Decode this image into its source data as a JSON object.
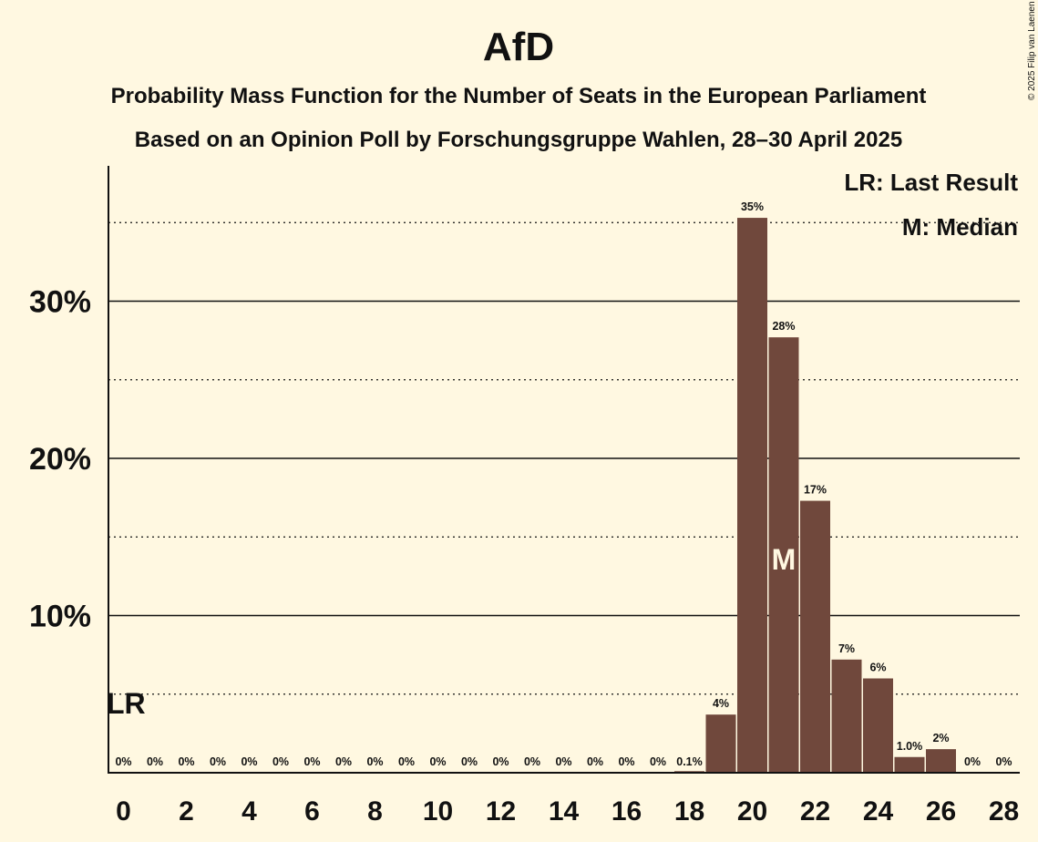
{
  "chart_data": {
    "type": "bar",
    "title": "AfD",
    "subtitle1": "Probability Mass Function for the Number of Seats in the European Parliament",
    "subtitle2": "Based on an Opinion Poll by Forschungsgruppe Wahlen, 28–30 April 2025",
    "copyright": "© 2025 Filip van Laenen",
    "x": [
      0,
      1,
      2,
      3,
      4,
      5,
      6,
      7,
      8,
      9,
      10,
      11,
      12,
      13,
      14,
      15,
      16,
      17,
      18,
      19,
      20,
      21,
      22,
      23,
      24,
      25,
      26,
      27,
      28
    ],
    "values": [
      0,
      0,
      0,
      0,
      0,
      0,
      0,
      0,
      0,
      0,
      0,
      0,
      0,
      0,
      0,
      0,
      0,
      0,
      0.1,
      3.7,
      35.3,
      27.7,
      17.3,
      7.2,
      6.0,
      1.0,
      1.5,
      0,
      0
    ],
    "value_labels": [
      "0%",
      "0%",
      "0%",
      "0%",
      "0%",
      "0%",
      "0%",
      "0%",
      "0%",
      "0%",
      "0%",
      "0%",
      "0%",
      "0%",
      "0%",
      "0%",
      "0%",
      "0%",
      "0.1%",
      "4%",
      "35%",
      "28%",
      "17%",
      "7%",
      "6%",
      "1.0%",
      "2%",
      "0%",
      "0%"
    ],
    "x_tick_labels": [
      "0",
      "2",
      "4",
      "6",
      "8",
      "10",
      "12",
      "14",
      "16",
      "18",
      "20",
      "22",
      "24",
      "26",
      "28"
    ],
    "y_tick_labels": [
      "10%",
      "20%",
      "30%"
    ],
    "ylim": [
      0,
      38.6
    ],
    "grid": true,
    "bar_color": "#70483c",
    "last_result": {
      "seat": 0,
      "label": "LR"
    },
    "median": {
      "seat": 21,
      "label": "M"
    },
    "legend": {
      "position": "top-right",
      "items": [
        "LR: Last Result",
        "M: Median"
      ]
    }
  }
}
